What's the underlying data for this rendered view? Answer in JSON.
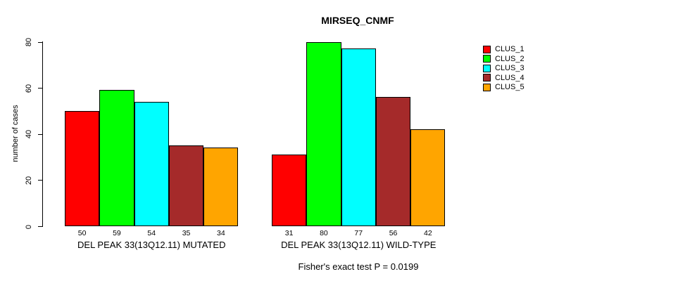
{
  "chart_data": {
    "type": "bar",
    "title": "MIRSEQ_CNMF",
    "ylabel": "number of cases",
    "xlabel": "",
    "categories": [
      "DEL PEAK 33(13Q12.11) MUTATED",
      "DEL PEAK 33(13Q12.11) WILD-TYPE"
    ],
    "series": [
      {
        "name": "CLUS_1",
        "color": "#ff0000",
        "values": [
          50,
          31
        ]
      },
      {
        "name": "CLUS_2",
        "color": "#00ff00",
        "values": [
          59,
          80
        ]
      },
      {
        "name": "CLUS_3",
        "color": "#00ffff",
        "values": [
          54,
          77
        ]
      },
      {
        "name": "CLUS_4",
        "color": "#a52a2a",
        "values": [
          35,
          56
        ]
      },
      {
        "name": "CLUS_5",
        "color": "#ffa500",
        "values": [
          34,
          42
        ]
      }
    ],
    "bar_value_labels": [
      [
        50,
        59,
        54,
        35,
        34
      ],
      [
        31,
        80,
        77,
        56,
        42
      ]
    ],
    "yticks": [
      0,
      20,
      40,
      60,
      80
    ],
    "ylim": [
      0,
      80
    ],
    "grid": false,
    "legend_position": "right",
    "annotation": "Fisher's exact test P = 0.0199"
  }
}
